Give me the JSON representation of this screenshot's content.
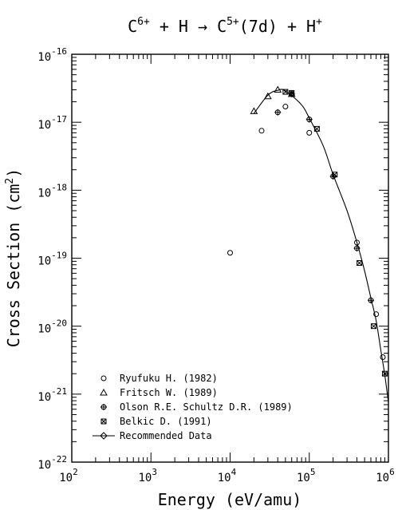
{
  "chart_data": {
    "type": "scatter",
    "title": {
      "a": "C",
      "a_sup": "6+",
      "b": " + H → C",
      "b_sup": "5+",
      "c": "(7d) + H",
      "c_sup": "+"
    },
    "xlabel": "Energy (eV/amu)",
    "ylabel": {
      "main": "Cross Section (cm",
      "sup": "2",
      "end": ")"
    },
    "x_scale": "log",
    "y_scale": "log",
    "xlim": [
      100,
      1000000
    ],
    "ylim": [
      1e-22,
      1e-16
    ],
    "x_ticks": [
      {
        "v": 100,
        "base": "10",
        "exp": "2"
      },
      {
        "v": 1000,
        "base": "10",
        "exp": "3"
      },
      {
        "v": 10000,
        "base": "10",
        "exp": "4"
      },
      {
        "v": 100000,
        "base": "10",
        "exp": "5"
      },
      {
        "v": 1000000,
        "base": "10",
        "exp": "6"
      }
    ],
    "y_ticks": [
      {
        "v": 1e-16,
        "base": "10",
        "exp": "-16"
      },
      {
        "v": 1e-17,
        "base": "10",
        "exp": "-17"
      },
      {
        "v": 1e-18,
        "base": "10",
        "exp": "-18"
      },
      {
        "v": 1e-19,
        "base": "10",
        "exp": "-19"
      },
      {
        "v": 1e-20,
        "base": "10",
        "exp": "-20"
      },
      {
        "v": 1e-21,
        "base": "10",
        "exp": "-21"
      },
      {
        "v": 1e-22,
        "base": "10",
        "exp": "-22"
      }
    ],
    "grid": false,
    "legend_position": "bottom-left",
    "series": [
      {
        "name": "Ryufuku H. (1982)",
        "marker": "circle",
        "points": [
          [
            10000,
            1.2e-19
          ],
          [
            25000,
            7.5e-18
          ],
          [
            50000,
            1.7e-17
          ],
          [
            100000,
            7e-18
          ],
          [
            400000,
            1.7e-19
          ],
          [
            700000,
            1.5e-20
          ],
          [
            850000,
            3.5e-21
          ]
        ]
      },
      {
        "name": "Fritsch W. (1989)",
        "marker": "triangle",
        "points": [
          [
            20000,
            1.45e-17
          ],
          [
            30000,
            2.4e-17
          ],
          [
            40000,
            3e-17
          ],
          [
            60000,
            2.6e-17
          ]
        ]
      },
      {
        "name": "Olson R.E. Schultz D.R. (1989)",
        "marker": "circle-plus",
        "points": [
          [
            40000,
            1.4e-17
          ],
          [
            60000,
            2.6e-17
          ],
          [
            100000,
            1.1e-17
          ],
          [
            200000,
            1.6e-18
          ],
          [
            400000,
            1.4e-19
          ],
          [
            600000,
            2.4e-20
          ]
        ]
      },
      {
        "name": "Belkic D. (1991)",
        "marker": "x-square",
        "points": [
          [
            50000,
            2.8e-17
          ],
          [
            60000,
            2.7e-17
          ],
          [
            125000,
            8e-18
          ],
          [
            210000,
            1.7e-18
          ],
          [
            430000,
            8.5e-20
          ],
          [
            650000,
            1e-20
          ],
          [
            900000,
            2e-21
          ]
        ]
      },
      {
        "name": "Recommended Data",
        "marker": "diamond-line",
        "points": [
          [
            20000,
            1.35e-17
          ],
          [
            30000,
            2.5e-17
          ],
          [
            40000,
            2.95e-17
          ],
          [
            50000,
            2.9e-17
          ],
          [
            80000,
            1.8e-17
          ],
          [
            100000,
            1.15e-17
          ],
          [
            150000,
            4.5e-18
          ],
          [
            200000,
            1.7e-18
          ],
          [
            300000,
            5e-19
          ],
          [
            400000,
            1.7e-19
          ],
          [
            500000,
            6.5e-20
          ],
          [
            600000,
            2.6e-20
          ],
          [
            700000,
            1.2e-20
          ],
          [
            800000,
            4.5e-21
          ],
          [
            900000,
            1.9e-21
          ],
          [
            1000000,
            7.5e-22
          ]
        ]
      }
    ]
  }
}
